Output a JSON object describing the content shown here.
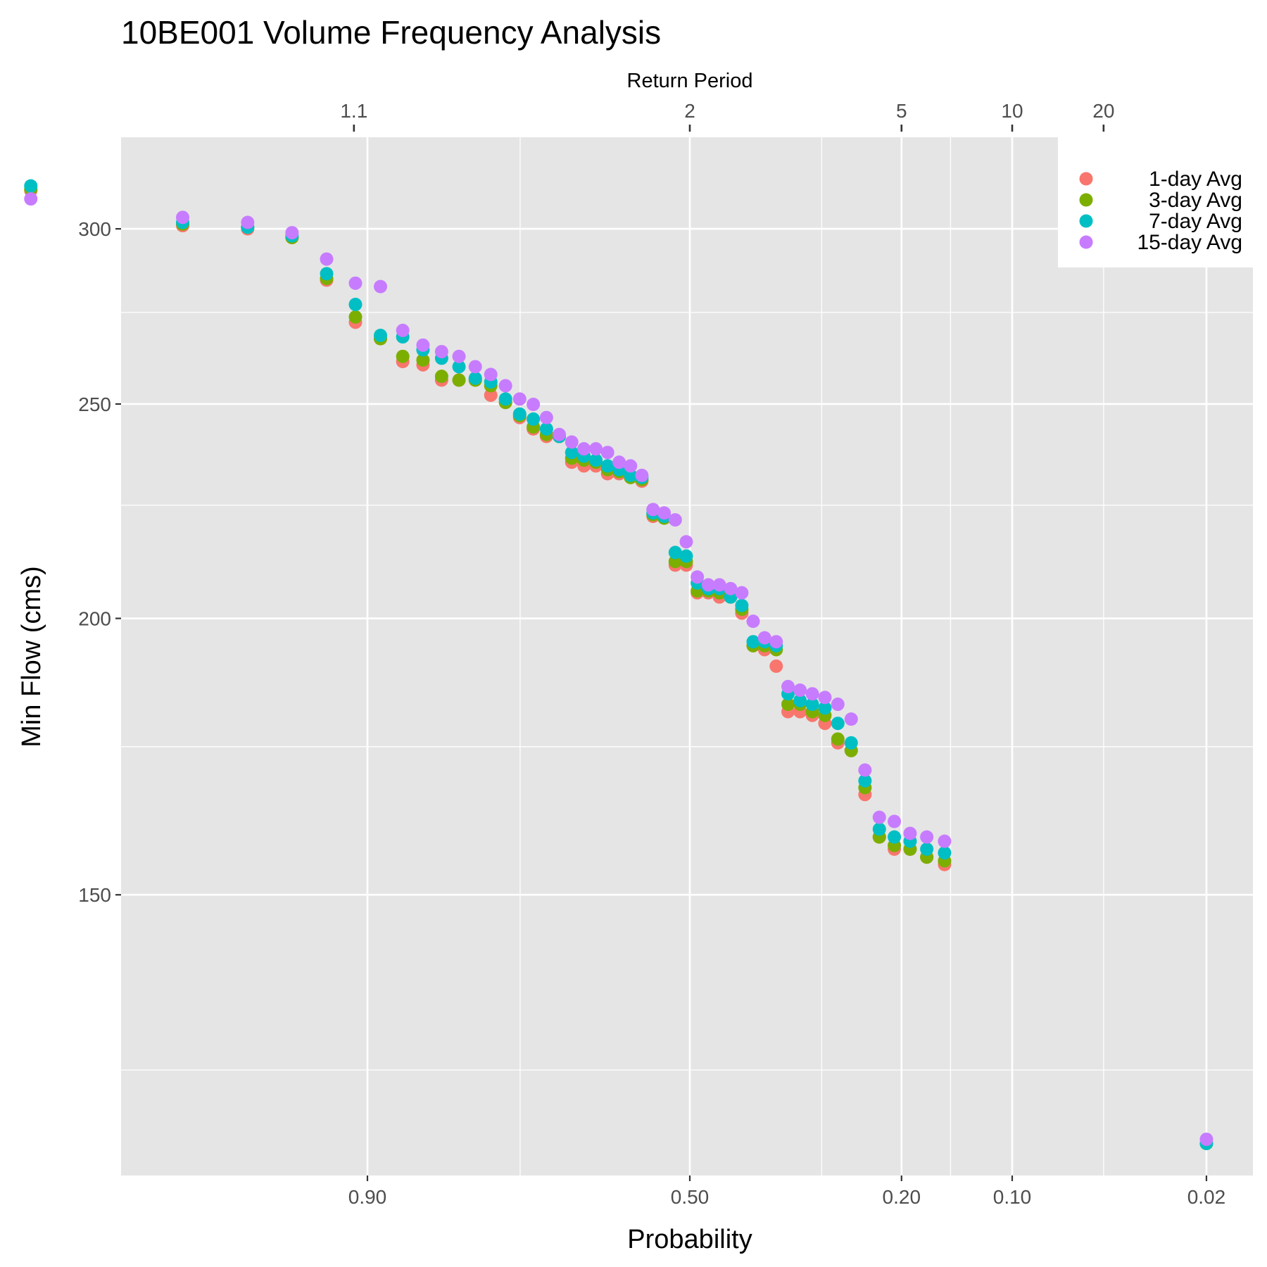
{
  "chart_data": {
    "type": "scatter",
    "title": "10BE001  Volume Frequency Analysis",
    "xlabel": "Probability",
    "ylabel": "Min Flow (cms)",
    "x2label": "Return Period",
    "x_scale": "normal-probability",
    "x_ticks": [
      0.9,
      0.5,
      0.2,
      0.1,
      0.02
    ],
    "x_tick_labels": [
      "0.90",
      "0.50",
      "0.20",
      "0.10",
      "0.02"
    ],
    "x_minor_ticks": [
      0.99,
      0.75,
      0.3,
      0.15,
      0.05
    ],
    "x2_ticks": [
      1.1,
      2,
      5,
      10,
      20
    ],
    "x2_tick_labels": [
      "1.1",
      "2",
      "5",
      "10",
      "20"
    ],
    "y_ticks": [
      150,
      200,
      250,
      300
    ],
    "y_tick_labels": [
      "150",
      "200",
      "250",
      "300"
    ],
    "y_minor_ticks": [
      125,
      175,
      225,
      275
    ],
    "ylim": [
      112,
      330
    ],
    "y_scale": "log",
    "grid": true,
    "legend_position": "top-right",
    "series": [
      {
        "name": "1-day Avg",
        "color": "#F8766D",
        "points": [
          [
            0.9956,
            312.2
          ],
          [
            0.9781,
            301.0
          ],
          [
            0.9606,
            300.0
          ],
          [
            0.9431,
            297.3
          ],
          [
            0.9256,
            284.4
          ],
          [
            0.9081,
            272.2
          ],
          [
            0.8906,
            267.6
          ],
          [
            0.8731,
            261.3
          ],
          [
            0.8556,
            260.4
          ],
          [
            0.8381,
            256.3
          ],
          [
            0.8206,
            256.3
          ],
          [
            0.8031,
            256.3
          ],
          [
            0.7856,
            252.3
          ],
          [
            0.7681,
            250.4
          ],
          [
            0.7506,
            246.5
          ],
          [
            0.7331,
            243.6
          ],
          [
            0.7156,
            241.7
          ],
          [
            0.6981,
            241.7
          ],
          [
            0.6806,
            235.3
          ],
          [
            0.6631,
            234.4
          ],
          [
            0.6456,
            234.4
          ],
          [
            0.6281,
            232.5
          ],
          [
            0.6106,
            232.5
          ],
          [
            0.5931,
            231.6
          ],
          [
            0.5756,
            230.7
          ],
          [
            0.5581,
            222.4
          ],
          [
            0.5406,
            222.4
          ],
          [
            0.5231,
            211.4
          ],
          [
            0.5056,
            211.4
          ],
          [
            0.4881,
            205.4
          ],
          [
            0.4706,
            205.4
          ],
          [
            0.4531,
            204.5
          ],
          [
            0.4356,
            204.5
          ],
          [
            0.4181,
            201.1
          ],
          [
            0.4006,
            194.4
          ],
          [
            0.3831,
            193.6
          ],
          [
            0.3656,
            190.3
          ],
          [
            0.3481,
            181.5
          ],
          [
            0.3306,
            181.5
          ],
          [
            0.3131,
            180.8
          ],
          [
            0.2956,
            179.3
          ],
          [
            0.2781,
            175.7
          ],
          [
            0.2606,
            174.3
          ],
          [
            0.2431,
            166.5
          ],
          [
            0.2256,
            159.3
          ],
          [
            0.2081,
            157.3
          ],
          [
            0.1906,
            157.3
          ],
          [
            0.1731,
            156.0
          ],
          [
            0.1556,
            154.8
          ],
          [
            0.02,
            115.8
          ]
        ]
      },
      {
        "name": "3-day Avg",
        "color": "#7CAE00",
        "points": [
          [
            0.9956,
            312.7
          ],
          [
            0.9781,
            301.5
          ],
          [
            0.9606,
            300.5
          ],
          [
            0.9431,
            297.3
          ],
          [
            0.9256,
            284.9
          ],
          [
            0.9081,
            273.7
          ],
          [
            0.8906,
            267.6
          ],
          [
            0.8731,
            262.7
          ],
          [
            0.8556,
            261.7
          ],
          [
            0.8381,
            257.3
          ],
          [
            0.8206,
            256.3
          ],
          [
            0.8031,
            256.3
          ],
          [
            0.7856,
            254.8
          ],
          [
            0.7681,
            250.4
          ],
          [
            0.7506,
            247.0
          ],
          [
            0.7331,
            244.1
          ],
          [
            0.7156,
            242.2
          ],
          [
            0.6981,
            241.7
          ],
          [
            0.6806,
            236.3
          ],
          [
            0.6631,
            235.8
          ],
          [
            0.6456,
            235.3
          ],
          [
            0.6281,
            233.5
          ],
          [
            0.6106,
            233.0
          ],
          [
            0.5931,
            231.6
          ],
          [
            0.5756,
            231.1
          ],
          [
            0.5581,
            222.8
          ],
          [
            0.5406,
            222.0
          ],
          [
            0.5231,
            212.2
          ],
          [
            0.5056,
            212.2
          ],
          [
            0.4881,
            205.8
          ],
          [
            0.4706,
            205.8
          ],
          [
            0.4531,
            205.4
          ],
          [
            0.4356,
            204.5
          ],
          [
            0.4181,
            201.9
          ],
          [
            0.4006,
            194.4
          ],
          [
            0.3831,
            194.4
          ],
          [
            0.3656,
            193.6
          ],
          [
            0.3481,
            182.9
          ],
          [
            0.3306,
            182.9
          ],
          [
            0.3131,
            181.5
          ],
          [
            0.2956,
            180.8
          ],
          [
            0.2781,
            176.4
          ],
          [
            0.2606,
            174.3
          ],
          [
            0.2431,
            167.7
          ],
          [
            0.2256,
            159.3
          ],
          [
            0.2081,
            157.9
          ],
          [
            0.1906,
            157.3
          ],
          [
            0.1731,
            156.0
          ],
          [
            0.1556,
            155.4
          ],
          [
            0.02,
            115.8
          ]
        ]
      },
      {
        "name": "7-day Avg",
        "color": "#00BFC4",
        "points": [
          [
            0.9956,
            313.7
          ],
          [
            0.9781,
            302.0
          ],
          [
            0.9606,
            300.5
          ],
          [
            0.9431,
            297.8
          ],
          [
            0.9256,
            286.3
          ],
          [
            0.9081,
            277.3
          ],
          [
            0.8906,
            268.5
          ],
          [
            0.8731,
            268.1
          ],
          [
            0.8556,
            264.5
          ],
          [
            0.8381,
            262.2
          ],
          [
            0.8206,
            259.9
          ],
          [
            0.8031,
            256.8
          ],
          [
            0.7856,
            255.8
          ],
          [
            0.7681,
            251.3
          ],
          [
            0.7506,
            247.4
          ],
          [
            0.7331,
            246.1
          ],
          [
            0.7156,
            243.6
          ],
          [
            0.6981,
            241.7
          ],
          [
            0.6806,
            237.7
          ],
          [
            0.6631,
            236.8
          ],
          [
            0.6456,
            235.8
          ],
          [
            0.6281,
            234.4
          ],
          [
            0.6106,
            233.5
          ],
          [
            0.5931,
            232.1
          ],
          [
            0.5756,
            231.6
          ],
          [
            0.5581,
            223.2
          ],
          [
            0.5406,
            222.4
          ],
          [
            0.5231,
            214.2
          ],
          [
            0.5056,
            213.4
          ],
          [
            0.4881,
            207.5
          ],
          [
            0.4706,
            206.3
          ],
          [
            0.4531,
            206.3
          ],
          [
            0.4356,
            204.5
          ],
          [
            0.4181,
            202.7
          ],
          [
            0.4006,
            195.2
          ],
          [
            0.3831,
            195.2
          ],
          [
            0.3656,
            194.4
          ],
          [
            0.3481,
            184.9
          ],
          [
            0.3306,
            183.6
          ],
          [
            0.3131,
            182.9
          ],
          [
            0.2956,
            182.2
          ],
          [
            0.2781,
            179.3
          ],
          [
            0.2606,
            175.7
          ],
          [
            0.2431,
            168.9
          ],
          [
            0.2256,
            160.6
          ],
          [
            0.2081,
            159.3
          ],
          [
            0.1906,
            158.6
          ],
          [
            0.1731,
            157.3
          ],
          [
            0.1556,
            156.7
          ],
          [
            0.02,
            115.8
          ]
        ]
      },
      {
        "name": "15-day Avg",
        "color": "#C77CFF",
        "points": [
          [
            0.9956,
            309.5
          ],
          [
            0.9781,
            303.6
          ],
          [
            0.9606,
            302.0
          ],
          [
            0.9431,
            298.8
          ],
          [
            0.9256,
            290.7
          ],
          [
            0.9081,
            283.5
          ],
          [
            0.8906,
            282.5
          ],
          [
            0.8731,
            269.9
          ],
          [
            0.8556,
            265.8
          ],
          [
            0.8381,
            264.0
          ],
          [
            0.8206,
            262.7
          ],
          [
            0.8031,
            259.9
          ],
          [
            0.7856,
            257.8
          ],
          [
            0.7681,
            254.8
          ],
          [
            0.7506,
            251.3
          ],
          [
            0.7331,
            249.9
          ],
          [
            0.7156,
            246.5
          ],
          [
            0.6981,
            242.2
          ],
          [
            0.6806,
            240.3
          ],
          [
            0.6631,
            238.6
          ],
          [
            0.6456,
            238.6
          ],
          [
            0.6281,
            237.7
          ],
          [
            0.6106,
            235.3
          ],
          [
            0.5931,
            234.4
          ],
          [
            0.5756,
            232.1
          ],
          [
            0.5581,
            224.0
          ],
          [
            0.5406,
            223.2
          ],
          [
            0.5231,
            221.6
          ],
          [
            0.5056,
            216.6
          ],
          [
            0.4881,
            208.8
          ],
          [
            0.4706,
            207.1
          ],
          [
            0.4531,
            207.1
          ],
          [
            0.4356,
            206.3
          ],
          [
            0.4181,
            205.4
          ],
          [
            0.4006,
            199.4
          ],
          [
            0.3831,
            196.0
          ],
          [
            0.3656,
            195.2
          ],
          [
            0.3481,
            186.3
          ],
          [
            0.3306,
            185.6
          ],
          [
            0.3131,
            184.9
          ],
          [
            0.2956,
            184.2
          ],
          [
            0.2781,
            182.9
          ],
          [
            0.2606,
            180.1
          ],
          [
            0.2431,
            170.8
          ],
          [
            0.2256,
            162.6
          ],
          [
            0.2081,
            161.9
          ],
          [
            0.1906,
            159.9
          ],
          [
            0.1731,
            159.3
          ],
          [
            0.1556,
            158.6
          ],
          [
            0.02,
            116.3
          ]
        ]
      }
    ]
  }
}
